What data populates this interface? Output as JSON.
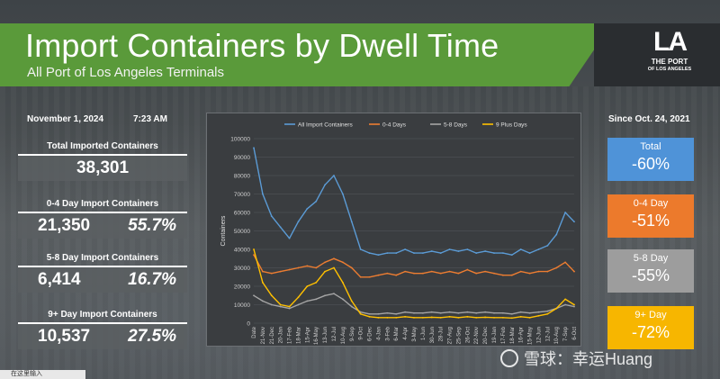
{
  "header": {
    "title": "Import Containers by Dwell Time",
    "subtitle": "All Port of Los Angeles Terminals",
    "logo_mark": "LA",
    "logo_line1": "THE PORT",
    "logo_line2": "OF LOS ANGELES",
    "green": "#5a9a3a"
  },
  "left": {
    "date": "November 1, 2024",
    "time": "7:23 AM",
    "stats": [
      {
        "label": "Total Imported Containers",
        "value": "38,301",
        "pct": ""
      },
      {
        "label": "0-4 Day Import Containers",
        "value": "21,350",
        "pct": "55.7%"
      },
      {
        "label": "5-8 Day Import Containers",
        "value": "6,414",
        "pct": "16.7%"
      },
      {
        "label": "9+ Day Import Containers",
        "value": "10,537",
        "pct": "27.5%"
      }
    ]
  },
  "right": {
    "since": "Since Oct. 24, 2021",
    "changes": [
      {
        "label": "Total",
        "value": "-60%",
        "color": "#4f93d8"
      },
      {
        "label": "0-4 Day",
        "value": "-51%",
        "color": "#ec7a2c"
      },
      {
        "label": "5-8 Day",
        "value": "-55%",
        "color": "#9d9d9d"
      },
      {
        "label": "9+ Day",
        "value": "-72%",
        "color": "#f7b600"
      }
    ]
  },
  "watermark": "雪球：幸运Huang",
  "taskbar": "在这里输入",
  "chart_data": {
    "type": "line",
    "ylabel": "Containers",
    "ylim": [
      0,
      100000
    ],
    "yticks": [
      0,
      10000,
      20000,
      30000,
      40000,
      50000,
      60000,
      70000,
      80000,
      90000,
      100000
    ],
    "categories": [
      "Date",
      "21-Nov",
      "21-Dec",
      "20-Jan",
      "17-Feb",
      "18-Mar",
      "15-Apr",
      "16-May",
      "13-Jun",
      "12-Jul",
      "10-Aug",
      "9-Sep",
      "9-Oct",
      "6-Dec",
      "4-Jan",
      "3-Feb",
      "6-Mar",
      "4-Apr",
      "3-May",
      "1-Jun",
      "30-Jun",
      "28-Jul",
      "27-Aug",
      "25-Sep",
      "26-Oct",
      "22-Nov",
      "20-Dec",
      "19-Jan",
      "17-Feb",
      "18-Mar",
      "16-Apr",
      "15-May",
      "12-Jun",
      "12-Jul",
      "10-Aug",
      "7-Sep",
      "6-Oct"
    ],
    "legend_position": "top",
    "series": [
      {
        "name": "All Import Containers",
        "color": "#5b9bd5",
        "values": [
          95000,
          70000,
          58000,
          52000,
          46000,
          55000,
          62000,
          66000,
          75000,
          80000,
          70000,
          55000,
          40000,
          38000,
          37000,
          38000,
          38000,
          40000,
          38000,
          38000,
          39000,
          38000,
          40000,
          39000,
          40000,
          38000,
          39000,
          38000,
          38000,
          37000,
          40000,
          38000,
          40000,
          42000,
          48000,
          60000,
          55000
        ]
      },
      {
        "name": "0-4 Days",
        "color": "#ed7d31",
        "values": [
          37000,
          28000,
          27000,
          28000,
          29000,
          30000,
          31000,
          30000,
          33000,
          35000,
          33000,
          30000,
          25000,
          25000,
          26000,
          27000,
          26000,
          28000,
          27000,
          27000,
          28000,
          27000,
          28000,
          27000,
          29000,
          27000,
          28000,
          27000,
          26000,
          26000,
          28000,
          27000,
          28000,
          28000,
          30000,
          33000,
          28000
        ]
      },
      {
        "name": "5-8 Days",
        "color": "#a5a5a5",
        "values": [
          15000,
          12000,
          10000,
          9000,
          8000,
          10000,
          12000,
          13000,
          15000,
          16000,
          13000,
          9000,
          6000,
          5000,
          5000,
          5500,
          5000,
          6000,
          5500,
          5500,
          6000,
          5500,
          6000,
          5500,
          6000,
          5500,
          6000,
          5500,
          5500,
          5000,
          6000,
          5500,
          6000,
          6500,
          8000,
          10000,
          9000
        ]
      },
      {
        "name": "9 Plus Days",
        "color": "#ffc000",
        "values": [
          40000,
          22000,
          15000,
          10000,
          9000,
          14000,
          20000,
          22000,
          28000,
          30000,
          22000,
          12000,
          5000,
          3500,
          3000,
          3000,
          3000,
          3500,
          3000,
          3000,
          3200,
          3000,
          3500,
          3000,
          3500,
          3000,
          3200,
          3000,
          3000,
          2800,
          3500,
          3000,
          4000,
          5000,
          8000,
          13000,
          10000
        ]
      }
    ]
  }
}
